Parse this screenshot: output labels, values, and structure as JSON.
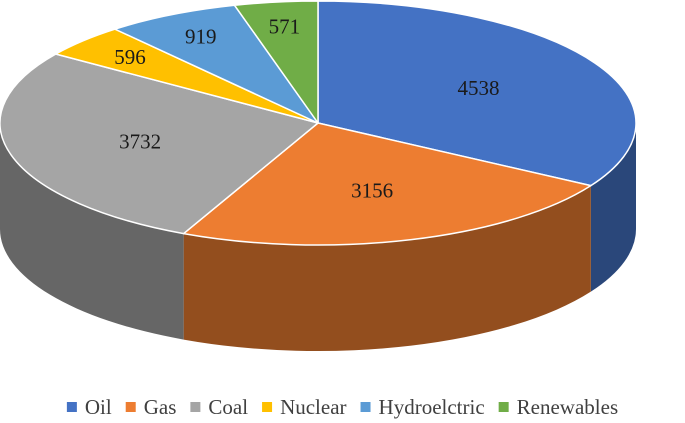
{
  "chart_data": {
    "type": "pie",
    "style": "3d",
    "title": "",
    "legend_position": "bottom",
    "series": [
      {
        "label": "Oil",
        "value": 4538,
        "color": "#4472c4"
      },
      {
        "label": "Gas",
        "value": 3156,
        "color": "#ed7d31"
      },
      {
        "label": "Coal",
        "value": 3732,
        "color": "#a5a5a5"
      },
      {
        "label": "Nuclear",
        "value": 596,
        "color": "#ffc000"
      },
      {
        "label": "Hydroelctric",
        "value": 919,
        "color": "#5b9bd5"
      },
      {
        "label": "Renewables",
        "value": 571,
        "color": "#70ad47"
      }
    ]
  }
}
